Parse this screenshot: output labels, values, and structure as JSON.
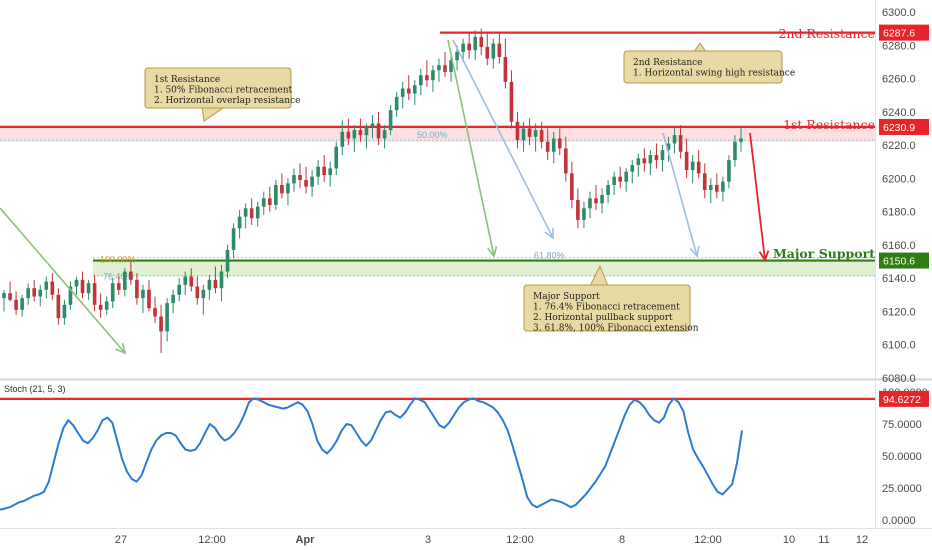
{
  "chart_data": {
    "type": "candlestick",
    "symbol_interval": "",
    "price_axis": {
      "ticks": [
        "6300.0",
        "6280.0",
        "6260.0",
        "6240.0",
        "6220.0",
        "6200.0",
        "6180.0",
        "6160.0",
        "6140.0",
        "6120.0",
        "6100.0",
        "6080.0"
      ],
      "range": [
        6080,
        6300
      ]
    },
    "time_axis": {
      "ticks": [
        "27",
        "12:00",
        "Apr",
        "3",
        "12:00",
        "8",
        "12:00",
        "10",
        "11",
        "12"
      ]
    },
    "levels": [
      {
        "id": "2nd-resistance",
        "label": "2nd Resistance",
        "value": 6287.6,
        "tag": "6287.6",
        "color": "#e8232a"
      },
      {
        "id": "1st-resistance",
        "label": "1st Resistance",
        "value": 6230.9,
        "tag": "6230.9",
        "color": "#e8232a"
      },
      {
        "id": "major-support",
        "label": "Major Support",
        "value": 6150.6,
        "tag": "6150.6",
        "color": "#2f7d13"
      }
    ],
    "fib_labels": [
      "50.00%",
      "61.80%",
      "100.00%",
      "76.40%"
    ],
    "annotations": [
      {
        "id": "first-resistance-note",
        "lines": [
          "1st Resistance",
          "1. 50% Fibonacci retracement",
          "2. Horizontal overlap resistance"
        ]
      },
      {
        "id": "second-resistance-note",
        "lines": [
          "2nd Resistance",
          "1. Horizontal swing high resistance"
        ]
      },
      {
        "id": "major-support-note",
        "lines": [
          "Major Support",
          "1. 76.4% Fibonacci retracement",
          "2. Horizontal pullback support",
          "3. 61.8%, 100% Fibonacci extension"
        ]
      }
    ],
    "candles": [
      {
        "o": 6128,
        "h": 6133,
        "l": 6120,
        "c": 6131
      },
      {
        "o": 6131,
        "h": 6138,
        "l": 6126,
        "c": 6127
      },
      {
        "o": 6127,
        "h": 6132,
        "l": 6118,
        "c": 6121
      },
      {
        "o": 6121,
        "h": 6130,
        "l": 6117,
        "c": 6128
      },
      {
        "o": 6128,
        "h": 6137,
        "l": 6124,
        "c": 6134
      },
      {
        "o": 6134,
        "h": 6139,
        "l": 6126,
        "c": 6129
      },
      {
        "o": 6129,
        "h": 6136,
        "l": 6123,
        "c": 6133
      },
      {
        "o": 6133,
        "h": 6141,
        "l": 6128,
        "c": 6138
      },
      {
        "o": 6138,
        "h": 6143,
        "l": 6127,
        "c": 6130
      },
      {
        "o": 6130,
        "h": 6134,
        "l": 6112,
        "c": 6116
      },
      {
        "o": 6116,
        "h": 6127,
        "l": 6112,
        "c": 6124
      },
      {
        "o": 6124,
        "h": 6138,
        "l": 6121,
        "c": 6135
      },
      {
        "o": 6135,
        "h": 6141,
        "l": 6130,
        "c": 6139
      },
      {
        "o": 6139,
        "h": 6144,
        "l": 6128,
        "c": 6131
      },
      {
        "o": 6131,
        "h": 6139,
        "l": 6127,
        "c": 6137
      },
      {
        "o": 6137,
        "h": 6142,
        "l": 6120,
        "c": 6124
      },
      {
        "o": 6124,
        "h": 6131,
        "l": 6116,
        "c": 6121
      },
      {
        "o": 6121,
        "h": 6129,
        "l": 6118,
        "c": 6126
      },
      {
        "o": 6126,
        "h": 6140,
        "l": 6122,
        "c": 6137
      },
      {
        "o": 6137,
        "h": 6141,
        "l": 6130,
        "c": 6133
      },
      {
        "o": 6133,
        "h": 6146,
        "l": 6129,
        "c": 6144
      },
      {
        "o": 6144,
        "h": 6150,
        "l": 6136,
        "c": 6139
      },
      {
        "o": 6139,
        "h": 6143,
        "l": 6124,
        "c": 6128
      },
      {
        "o": 6128,
        "h": 6136,
        "l": 6119,
        "c": 6133
      },
      {
        "o": 6133,
        "h": 6139,
        "l": 6120,
        "c": 6122
      },
      {
        "o": 6122,
        "h": 6129,
        "l": 6113,
        "c": 6117
      },
      {
        "o": 6117,
        "h": 6124,
        "l": 6095,
        "c": 6108
      },
      {
        "o": 6108,
        "h": 6128,
        "l": 6102,
        "c": 6125
      },
      {
        "o": 6125,
        "h": 6133,
        "l": 6119,
        "c": 6130
      },
      {
        "o": 6130,
        "h": 6140,
        "l": 6126,
        "c": 6136
      },
      {
        "o": 6136,
        "h": 6144,
        "l": 6130,
        "c": 6141
      },
      {
        "o": 6141,
        "h": 6146,
        "l": 6132,
        "c": 6135
      },
      {
        "o": 6135,
        "h": 6141,
        "l": 6124,
        "c": 6128
      },
      {
        "o": 6128,
        "h": 6136,
        "l": 6118,
        "c": 6133
      },
      {
        "o": 6133,
        "h": 6142,
        "l": 6127,
        "c": 6139
      },
      {
        "o": 6139,
        "h": 6147,
        "l": 6131,
        "c": 6134
      },
      {
        "o": 6134,
        "h": 6148,
        "l": 6126,
        "c": 6144
      },
      {
        "o": 6144,
        "h": 6160,
        "l": 6140,
        "c": 6157
      },
      {
        "o": 6157,
        "h": 6173,
        "l": 6152,
        "c": 6170
      },
      {
        "o": 6170,
        "h": 6181,
        "l": 6164,
        "c": 6177
      },
      {
        "o": 6177,
        "h": 6185,
        "l": 6170,
        "c": 6182
      },
      {
        "o": 6182,
        "h": 6188,
        "l": 6172,
        "c": 6176
      },
      {
        "o": 6176,
        "h": 6186,
        "l": 6171,
        "c": 6183
      },
      {
        "o": 6183,
        "h": 6192,
        "l": 6178,
        "c": 6188
      },
      {
        "o": 6188,
        "h": 6195,
        "l": 6180,
        "c": 6184
      },
      {
        "o": 6184,
        "h": 6199,
        "l": 6181,
        "c": 6196
      },
      {
        "o": 6196,
        "h": 6203,
        "l": 6188,
        "c": 6191
      },
      {
        "o": 6191,
        "h": 6200,
        "l": 6184,
        "c": 6197
      },
      {
        "o": 6197,
        "h": 6206,
        "l": 6192,
        "c": 6202
      },
      {
        "o": 6202,
        "h": 6209,
        "l": 6194,
        "c": 6199
      },
      {
        "o": 6199,
        "h": 6207,
        "l": 6191,
        "c": 6195
      },
      {
        "o": 6195,
        "h": 6205,
        "l": 6189,
        "c": 6201
      },
      {
        "o": 6201,
        "h": 6211,
        "l": 6196,
        "c": 6207
      },
      {
        "o": 6207,
        "h": 6214,
        "l": 6198,
        "c": 6202
      },
      {
        "o": 6202,
        "h": 6210,
        "l": 6195,
        "c": 6206
      },
      {
        "o": 6206,
        "h": 6222,
        "l": 6202,
        "c": 6219
      },
      {
        "o": 6219,
        "h": 6235,
        "l": 6214,
        "c": 6228
      },
      {
        "o": 6228,
        "h": 6236,
        "l": 6220,
        "c": 6224
      },
      {
        "o": 6224,
        "h": 6232,
        "l": 6216,
        "c": 6229
      },
      {
        "o": 6229,
        "h": 6236,
        "l": 6222,
        "c": 6226
      },
      {
        "o": 6226,
        "h": 6233,
        "l": 6218,
        "c": 6231
      },
      {
        "o": 6231,
        "h": 6238,
        "l": 6224,
        "c": 6233
      },
      {
        "o": 6233,
        "h": 6240,
        "l": 6220,
        "c": 6224
      },
      {
        "o": 6224,
        "h": 6232,
        "l": 6218,
        "c": 6229
      },
      {
        "o": 6229,
        "h": 6244,
        "l": 6226,
        "c": 6241
      },
      {
        "o": 6241,
        "h": 6252,
        "l": 6237,
        "c": 6249
      },
      {
        "o": 6249,
        "h": 6258,
        "l": 6242,
        "c": 6254
      },
      {
        "o": 6254,
        "h": 6262,
        "l": 6247,
        "c": 6251
      },
      {
        "o": 6251,
        "h": 6259,
        "l": 6244,
        "c": 6256
      },
      {
        "o": 6256,
        "h": 6266,
        "l": 6250,
        "c": 6262
      },
      {
        "o": 6262,
        "h": 6271,
        "l": 6255,
        "c": 6259
      },
      {
        "o": 6259,
        "h": 6268,
        "l": 6252,
        "c": 6265
      },
      {
        "o": 6265,
        "h": 6272,
        "l": 6258,
        "c": 6268
      },
      {
        "o": 6268,
        "h": 6276,
        "l": 6261,
        "c": 6264
      },
      {
        "o": 6264,
        "h": 6274,
        "l": 6258,
        "c": 6271
      },
      {
        "o": 6271,
        "h": 6280,
        "l": 6265,
        "c": 6276
      },
      {
        "o": 6276,
        "h": 6284,
        "l": 6270,
        "c": 6281
      },
      {
        "o": 6281,
        "h": 6288,
        "l": 6272,
        "c": 6277
      },
      {
        "o": 6277,
        "h": 6289,
        "l": 6271,
        "c": 6285
      },
      {
        "o": 6285,
        "h": 6290,
        "l": 6274,
        "c": 6279
      },
      {
        "o": 6279,
        "h": 6287,
        "l": 6268,
        "c": 6272
      },
      {
        "o": 6272,
        "h": 6284,
        "l": 6266,
        "c": 6281
      },
      {
        "o": 6281,
        "h": 6287,
        "l": 6269,
        "c": 6273
      },
      {
        "o": 6273,
        "h": 6284,
        "l": 6254,
        "c": 6258
      },
      {
        "o": 6258,
        "h": 6265,
        "l": 6230,
        "c": 6234
      },
      {
        "o": 6234,
        "h": 6240,
        "l": 6218,
        "c": 6223
      },
      {
        "o": 6223,
        "h": 6234,
        "l": 6216,
        "c": 6230
      },
      {
        "o": 6230,
        "h": 6236,
        "l": 6220,
        "c": 6225
      },
      {
        "o": 6225,
        "h": 6233,
        "l": 6216,
        "c": 6229
      },
      {
        "o": 6229,
        "h": 6234,
        "l": 6218,
        "c": 6222
      },
      {
        "o": 6222,
        "h": 6230,
        "l": 6211,
        "c": 6216
      },
      {
        "o": 6216,
        "h": 6228,
        "l": 6209,
        "c": 6224
      },
      {
        "o": 6224,
        "h": 6230,
        "l": 6214,
        "c": 6218
      },
      {
        "o": 6218,
        "h": 6225,
        "l": 6198,
        "c": 6203
      },
      {
        "o": 6203,
        "h": 6210,
        "l": 6182,
        "c": 6187
      },
      {
        "o": 6187,
        "h": 6194,
        "l": 6170,
        "c": 6175
      },
      {
        "o": 6175,
        "h": 6186,
        "l": 6170,
        "c": 6182
      },
      {
        "o": 6182,
        "h": 6192,
        "l": 6176,
        "c": 6188
      },
      {
        "o": 6188,
        "h": 6196,
        "l": 6181,
        "c": 6185
      },
      {
        "o": 6185,
        "h": 6194,
        "l": 6179,
        "c": 6190
      },
      {
        "o": 6190,
        "h": 6199,
        "l": 6185,
        "c": 6196
      },
      {
        "o": 6196,
        "h": 6204,
        "l": 6190,
        "c": 6201
      },
      {
        "o": 6201,
        "h": 6207,
        "l": 6194,
        "c": 6198
      },
      {
        "o": 6198,
        "h": 6206,
        "l": 6192,
        "c": 6204
      },
      {
        "o": 6204,
        "h": 6211,
        "l": 6197,
        "c": 6208
      },
      {
        "o": 6208,
        "h": 6215,
        "l": 6201,
        "c": 6212
      },
      {
        "o": 6212,
        "h": 6218,
        "l": 6204,
        "c": 6209
      },
      {
        "o": 6209,
        "h": 6217,
        "l": 6202,
        "c": 6214
      },
      {
        "o": 6214,
        "h": 6221,
        "l": 6206,
        "c": 6211
      },
      {
        "o": 6211,
        "h": 6220,
        "l": 6204,
        "c": 6217
      },
      {
        "o": 6217,
        "h": 6225,
        "l": 6210,
        "c": 6221
      },
      {
        "o": 6221,
        "h": 6231,
        "l": 6215,
        "c": 6226
      },
      {
        "o": 6226,
        "h": 6232,
        "l": 6212,
        "c": 6216
      },
      {
        "o": 6216,
        "h": 6224,
        "l": 6200,
        "c": 6205
      },
      {
        "o": 6205,
        "h": 6214,
        "l": 6197,
        "c": 6210
      },
      {
        "o": 6210,
        "h": 6217,
        "l": 6200,
        "c": 6203
      },
      {
        "o": 6203,
        "h": 6209,
        "l": 6188,
        "c": 6193
      },
      {
        "o": 6193,
        "h": 6200,
        "l": 6185,
        "c": 6196
      },
      {
        "o": 6196,
        "h": 6203,
        "l": 6188,
        "c": 6192
      },
      {
        "o": 6192,
        "h": 6201,
        "l": 6186,
        "c": 6198
      },
      {
        "o": 6198,
        "h": 6214,
        "l": 6194,
        "c": 6211
      },
      {
        "o": 6211,
        "h": 6226,
        "l": 6207,
        "c": 6222
      },
      {
        "o": 6222,
        "h": 6231,
        "l": 6216,
        "c": 6224
      }
    ],
    "stochastic": {
      "name": "Stoch (21, 5, 3)",
      "ticks": [
        "100.0000",
        "75.0000",
        "50.0000",
        "25.0000",
        "0.0000"
      ],
      "range": [
        0,
        100
      ],
      "marker": {
        "value": 94.6272,
        "tag": "94.6272"
      },
      "values": [
        8,
        9,
        10,
        12,
        14,
        15,
        17,
        19,
        20,
        22,
        30,
        45,
        60,
        72,
        78,
        74,
        68,
        62,
        60,
        64,
        70,
        78,
        80,
        76,
        62,
        48,
        38,
        32,
        30,
        35,
        45,
        55,
        62,
        66,
        68,
        68,
        66,
        60,
        55,
        54,
        55,
        60,
        68,
        75,
        72,
        66,
        62,
        64,
        68,
        74,
        82,
        92,
        95,
        94,
        92,
        90,
        89,
        88,
        87,
        88,
        90,
        92,
        90,
        85,
        75,
        62,
        55,
        52,
        56,
        62,
        70,
        75,
        74,
        68,
        62,
        58,
        62,
        70,
        78,
        84,
        85,
        82,
        80,
        84,
        90,
        95,
        94,
        92,
        86,
        80,
        74,
        72,
        76,
        82,
        88,
        92,
        94,
        95,
        93,
        92,
        90,
        88,
        84,
        78,
        70,
        58,
        45,
        32,
        18,
        12,
        10,
        12,
        14,
        16,
        15,
        14,
        12,
        10,
        12,
        16,
        20,
        25,
        30,
        36,
        42,
        52,
        62,
        72,
        82,
        90,
        94,
        92,
        88,
        82,
        78,
        76,
        80,
        90,
        95,
        92,
        85,
        68,
        55,
        48,
        42,
        35,
        28,
        22,
        20,
        24,
        28,
        45,
        70
      ]
    }
  }
}
